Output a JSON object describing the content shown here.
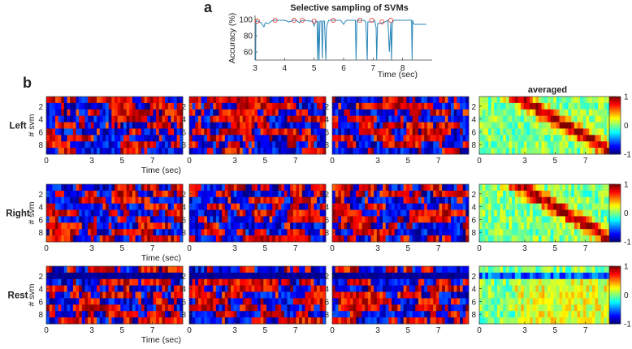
{
  "chart_data": [
    {
      "panel": "a",
      "type": "line",
      "title": "Selective sampling of SVMs",
      "xlabel": "Time (sec)",
      "ylabel": "Accuracy (%)",
      "xlim": [
        3,
        9
      ],
      "ylim": [
        50,
        105
      ],
      "xticks": [
        3,
        4,
        5,
        6,
        7,
        8
      ],
      "yticks": [
        60,
        80,
        100
      ],
      "series": [
        {
          "x": [
            3.0,
            3.02,
            3.03,
            3.1,
            3.2,
            3.3,
            3.35,
            3.45,
            3.55,
            3.65,
            3.8,
            4.0,
            4.15,
            4.3,
            4.4,
            4.5,
            4.55,
            4.7,
            4.85,
            4.95,
            5.0,
            5.05,
            5.1,
            5.12,
            5.15,
            5.17,
            5.2,
            5.25,
            5.28,
            5.3,
            5.35,
            5.4,
            5.42,
            5.45,
            5.5,
            5.6,
            5.7,
            5.8,
            5.9,
            6.0,
            6.05,
            6.1,
            6.3,
            6.4,
            6.42,
            6.45,
            6.5,
            6.7,
            6.75,
            6.8,
            6.82,
            6.85,
            7.0,
            7.05,
            7.1,
            7.12,
            7.15,
            7.2,
            7.3,
            7.4,
            7.5,
            7.55,
            7.6,
            7.62,
            7.65,
            7.7,
            7.9,
            8.0,
            8.3,
            8.32,
            8.34,
            8.36,
            8.4,
            8.6,
            8.8
          ],
          "values": [
            50,
            50,
            98,
            98,
            96,
            91,
            96,
            95,
            98,
            99,
            99,
            99,
            97,
            99,
            99,
            96,
            98,
            99,
            98,
            98,
            92,
            98,
            98,
            50,
            98,
            50,
            98,
            98,
            52,
            98,
            98,
            50,
            90,
            95,
            99,
            99,
            99,
            99,
            99,
            94,
            97,
            99,
            99,
            99,
            50,
            99,
            99,
            99,
            97,
            50,
            97,
            97,
            97,
            99,
            90,
            50,
            95,
            95,
            96,
            97,
            99,
            60,
            96,
            50,
            96,
            99,
            99,
            99,
            99,
            50,
            99,
            96,
            94,
            94,
            94
          ]
        }
      ],
      "markers": {
        "x": [
          3.08,
          3.68,
          4.32,
          4.6,
          5.0,
          5.65,
          6.55,
          6.95,
          7.3,
          7.6
        ],
        "values": [
          98,
          99,
          99,
          99,
          98,
          99,
          99,
          99,
          97,
          99
        ],
        "color": "#e8473f"
      },
      "line_color": "#2a86b8"
    },
    {
      "panel": "b",
      "type": "heatmap",
      "rows": [
        "Left",
        "Right",
        "Rest"
      ],
      "ylabel": "# svm",
      "xlabel": "Time (sec)",
      "xticks": [
        0,
        3,
        5,
        7
      ],
      "yticks": [
        2,
        4,
        6,
        8
      ],
      "xlim": [
        0,
        9
      ],
      "n_svm": 9,
      "columns": [
        "",
        "",
        "",
        "averaged"
      ],
      "colorbar": {
        "ticks": [
          1,
          0,
          -1
        ],
        "range": [
          -1,
          1
        ],
        "colormap": "jet"
      }
    }
  ],
  "labels": {
    "panel_a": "a",
    "panel_b": "b"
  }
}
